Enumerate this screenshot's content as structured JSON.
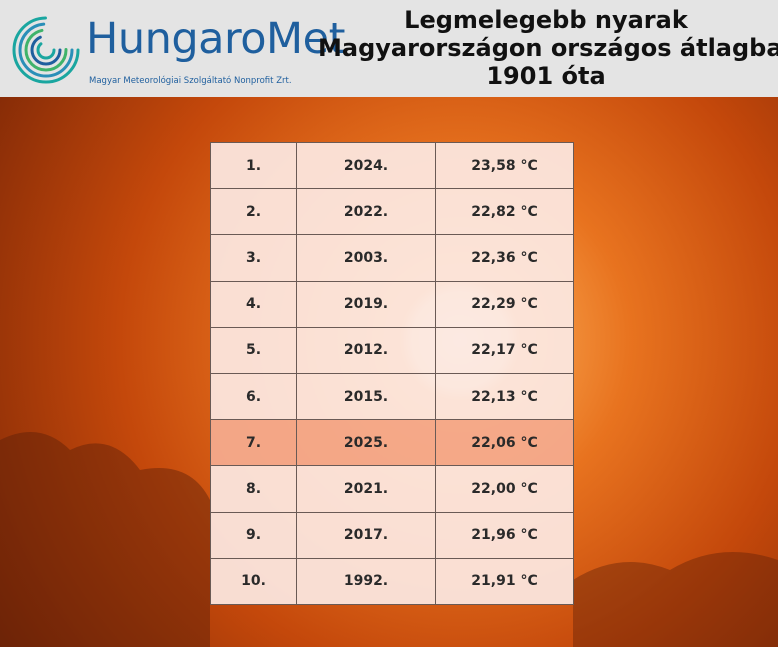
{
  "header": {
    "logo": {
      "name": "HungaroMet",
      "tagline": "Magyar Meteorológiai Szolgáltató Nonprofit Zrt."
    },
    "title": [
      "Legmelegebb nyarak",
      "Magyarországon országos átlagban",
      "1901 óta"
    ]
  },
  "table": {
    "rows": [
      [
        "1.",
        "2024.",
        "23,58 °C"
      ],
      [
        "2.",
        "2022.",
        "22,82 °C"
      ],
      [
        "3.",
        "2003.",
        "22,36 °C"
      ],
      [
        "4.",
        "2019.",
        "22,29 °C"
      ],
      [
        "5.",
        "2012.",
        "22,17 °C"
      ],
      [
        "6.",
        "2015.",
        "22,13 °C"
      ],
      [
        "7.",
        "2025.",
        "22,06 °C"
      ],
      [
        "8.",
        "2021.",
        "22,00 °C"
      ],
      [
        "9.",
        "2017.",
        "21,96 °C"
      ],
      [
        "10.",
        "1992.",
        "21,91 °C"
      ]
    ]
  }
}
